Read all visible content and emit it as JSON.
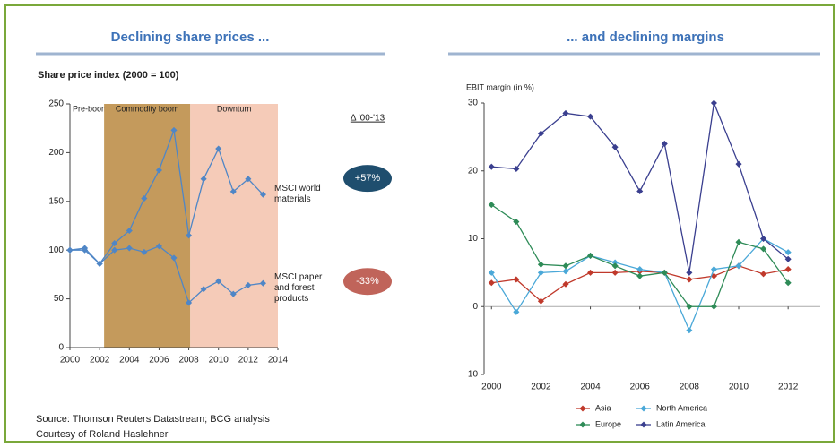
{
  "chart_data": [
    {
      "type": "line",
      "title": "Declining share prices ...",
      "y_label": "Share price index (2000 = 100)",
      "x": [
        2000,
        2001,
        2002,
        2003,
        2004,
        2005,
        2006,
        2007,
        2008,
        2009,
        2010,
        2011,
        2012,
        2013
      ],
      "xlim": [
        2000,
        2014
      ],
      "xticks": [
        2000,
        2002,
        2004,
        2006,
        2008,
        2010,
        2012,
        2014
      ],
      "ylim": [
        0,
        250
      ],
      "yticks": [
        0,
        50,
        100,
        150,
        200,
        250
      ],
      "periods": [
        {
          "label": "Pre-boom",
          "from": 2000,
          "to": 2002.3
        },
        {
          "label": "Commodity boom",
          "from": 2002.3,
          "to": 2008.1,
          "color": "#c49a5c"
        },
        {
          "label": "Downturn",
          "from": 2008.1,
          "to": 2014,
          "color": "#f5cbb8"
        }
      ],
      "change_title": "Δ '00-'13",
      "series": [
        {
          "name": "MSCI world materials",
          "color": "#4f86c6",
          "change": "+57%",
          "change_color": "#1f4e6e",
          "values": [
            100,
            100,
            86,
            107,
            120,
            153,
            182,
            223,
            115,
            173,
            204,
            160,
            173,
            157
          ]
        },
        {
          "name": "MSCI paper and forest products",
          "color": "#4f86c6",
          "change": "-33%",
          "change_color": "#c0645a",
          "values": [
            100,
            102,
            86,
            100,
            102,
            98,
            104,
            92,
            46,
            60,
            68,
            55,
            64,
            66
          ]
        }
      ]
    },
    {
      "type": "line",
      "title": "... and declining margins",
      "y_label": "EBIT margin (in %)",
      "x": [
        2000,
        2001,
        2002,
        2003,
        2004,
        2005,
        2006,
        2007,
        2008,
        2009,
        2010,
        2011,
        2012
      ],
      "xlim": [
        1999.7,
        2013.3
      ],
      "xticks": [
        2000,
        2002,
        2004,
        2006,
        2008,
        2010,
        2012
      ],
      "ylim": [
        -10,
        30
      ],
      "yticks": [
        -10,
        0,
        10,
        20,
        30
      ],
      "series": [
        {
          "name": "Asia",
          "color": "#c0392b",
          "values": [
            3.5,
            4,
            0.8,
            3.3,
            5,
            5,
            5.2,
            5,
            4,
            4.5,
            6,
            4.8,
            5.5
          ]
        },
        {
          "name": "North America",
          "color": "#4aa8d8",
          "values": [
            5,
            -0.8,
            5,
            5.2,
            7.5,
            6.5,
            5.5,
            5,
            -3.5,
            5.5,
            6,
            10,
            8
          ]
        },
        {
          "name": "Europe",
          "color": "#2e8b57",
          "values": [
            15,
            12.5,
            6.2,
            6,
            7.5,
            6,
            4.5,
            5,
            0,
            0,
            9.5,
            8.5,
            3.5
          ]
        },
        {
          "name": "Latin America",
          "color": "#3a3f8f",
          "values": [
            20.6,
            20.3,
            25.5,
            28.5,
            28,
            23.5,
            17,
            24,
            5,
            30,
            21,
            10,
            7
          ]
        }
      ]
    }
  ],
  "source": "Source: Thomson Reuters Datastream; BCG analysis",
  "courtesy": "Courtesy of Roland Haslehner"
}
